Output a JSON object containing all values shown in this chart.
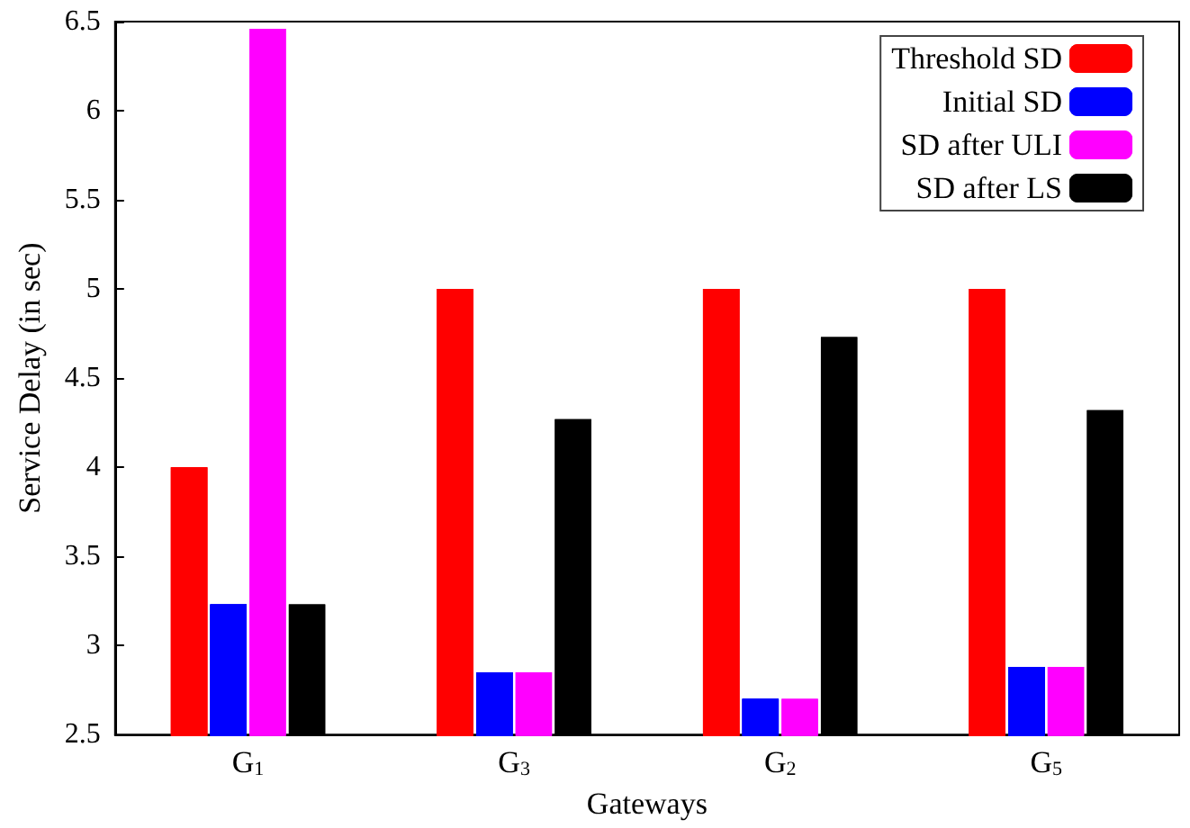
{
  "chart_data": {
    "type": "bar",
    "categories": [
      "G$_{1}$",
      "G$_{3}$",
      "G$_{2}$",
      "G$_{5}$"
    ],
    "xlabel": "Gateways",
    "ylabel": "Service Delay (in sec)",
    "series": [
      {
        "name": "Threshold SD",
        "color": "#ff0000",
        "values": [
          4.0,
          5.0,
          5.0,
          5.0
        ]
      },
      {
        "name": "Initial SD",
        "color": "#0000ff",
        "values": [
          3.23,
          2.85,
          2.7,
          2.88
        ]
      },
      {
        "name": "SD after ULI",
        "color": "#ff00ff",
        "values": [
          6.46,
          2.85,
          2.7,
          2.88
        ]
      },
      {
        "name": "SD after LS",
        "color": "#000000",
        "values": [
          3.23,
          4.27,
          4.73,
          4.32
        ]
      }
    ],
    "ylim": [
      2.5,
      6.5
    ],
    "yticks": [
      2.5,
      3,
      3.5,
      4,
      4.5,
      5,
      5.5,
      6,
      6.5
    ],
    "grid": false,
    "legend": "top right"
  }
}
